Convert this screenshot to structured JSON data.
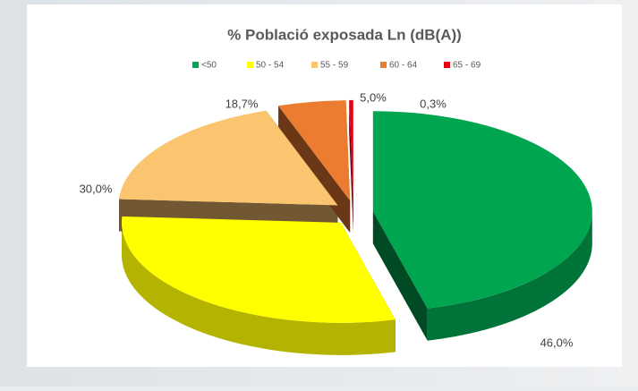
{
  "chart_data": {
    "type": "pie",
    "title": "% Població exposada Ln (dB(A))",
    "categories": [
      "<50",
      "50 - 54",
      "55 - 59",
      "60 - 64",
      "65 - 69"
    ],
    "values": [
      46.0,
      30.0,
      18.7,
      5.0,
      0.3
    ],
    "value_labels": [
      "46,0%",
      "30,0%",
      "18,7%",
      "5,0%",
      "0,3%"
    ],
    "colors": [
      "#00a550",
      "#ffff00",
      "#fbc46f",
      "#eb7c30",
      "#e60012"
    ],
    "legend": "top"
  }
}
